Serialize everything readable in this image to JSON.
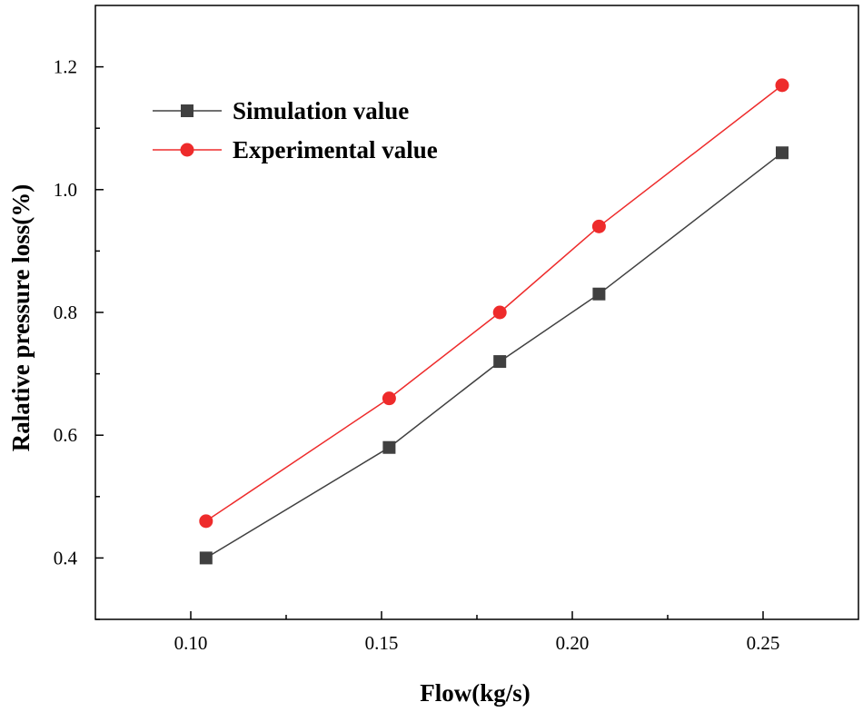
{
  "chart_data": {
    "type": "line",
    "xlabel": "Flow(kg/s)",
    "ylabel": "Ralative pressure loss(%)",
    "xlim": [
      0.075,
      0.275
    ],
    "ylim": [
      0.3,
      1.3
    ],
    "xticks": [
      0.1,
      0.15,
      0.2,
      0.25
    ],
    "xtick_labels": [
      "0.10",
      "0.15",
      "0.20",
      "0.25"
    ],
    "yticks": [
      0.4,
      0.6,
      0.8,
      1.0,
      1.2
    ],
    "ytick_labels": [
      "0.4",
      "0.6",
      "0.8",
      "1.0",
      "1.2"
    ],
    "grid": false,
    "legend_position": "top-left",
    "x": [
      0.104,
      0.152,
      0.181,
      0.207,
      0.255
    ],
    "series": [
      {
        "name": "Simulation value",
        "color": "#404040",
        "marker": "square",
        "values": [
          0.4,
          0.58,
          0.72,
          0.83,
          1.06
        ]
      },
      {
        "name": "Experimental value",
        "color": "#ee2b2b",
        "marker": "circle",
        "values": [
          0.46,
          0.66,
          0.8,
          0.94,
          1.17
        ]
      }
    ]
  }
}
